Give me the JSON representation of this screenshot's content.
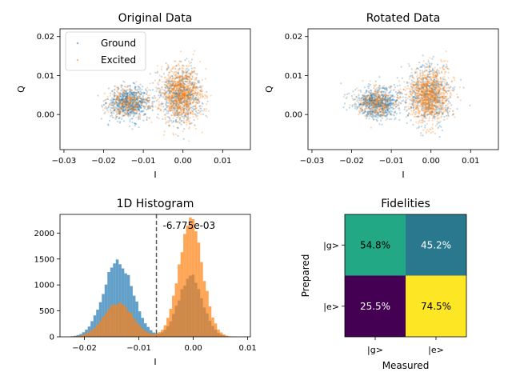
{
  "chart_data": [
    {
      "type": "scatter",
      "title": "Original Data",
      "xlabel": "I",
      "ylabel": "Q",
      "xlim": [
        -0.031,
        0.017
      ],
      "ylim": [
        -0.009,
        0.022
      ],
      "xticks": [
        -0.03,
        -0.02,
        -0.01,
        0.0,
        0.01
      ],
      "xtick_labels": [
        "−0.03",
        "−0.02",
        "−0.01",
        "0.00",
        "0.01"
      ],
      "yticks": [
        0.0,
        0.01,
        0.02
      ],
      "ytick_labels": [
        "0.00",
        "0.01",
        "0.02"
      ],
      "legend_position": "top-left",
      "series": [
        {
          "name": "Ground",
          "color": "#1f77b4",
          "clusters": [
            {
              "center": [
                -0.0135,
                0.003
              ],
              "spread": [
                0.0027,
                0.002
              ],
              "share": 0.55
            },
            {
              "center": [
                -0.0005,
                0.005
              ],
              "spread": [
                0.0026,
                0.0035
              ],
              "share": 0.45
            }
          ]
        },
        {
          "name": "Excited",
          "color": "#ff7f0e",
          "clusters": [
            {
              "center": [
                -0.0135,
                0.003
              ],
              "spread": [
                0.0027,
                0.002
              ],
              "share": 0.25
            },
            {
              "center": [
                -0.0005,
                0.005
              ],
              "spread": [
                0.0026,
                0.0035
              ],
              "share": 0.75
            }
          ]
        }
      ]
    },
    {
      "type": "scatter",
      "title": "Rotated Data",
      "xlabel": "I",
      "ylabel": "Q",
      "xlim": [
        -0.031,
        0.017
      ],
      "ylim": [
        -0.009,
        0.022
      ],
      "xticks": [
        -0.03,
        -0.02,
        -0.01,
        0.0,
        0.01
      ],
      "xtick_labels": [
        "−0.03",
        "−0.02",
        "−0.01",
        "0.00",
        "0.01"
      ],
      "yticks": [
        0.0,
        0.01,
        0.02
      ],
      "ytick_labels": [
        "0.00",
        "0.01",
        "0.02"
      ],
      "series": [
        {
          "name": "Ground",
          "color": "#1f77b4",
          "clusters": [
            {
              "center": [
                -0.0135,
                0.003
              ],
              "spread": [
                0.0027,
                0.002
              ],
              "share": 0.55
            },
            {
              "center": [
                -0.0005,
                0.005
              ],
              "spread": [
                0.0026,
                0.0035
              ],
              "share": 0.45
            }
          ]
        },
        {
          "name": "Excited",
          "color": "#ff7f0e",
          "clusters": [
            {
              "center": [
                -0.0135,
                0.003
              ],
              "spread": [
                0.0027,
                0.002
              ],
              "share": 0.25
            },
            {
              "center": [
                -0.0005,
                0.005
              ],
              "spread": [
                0.0026,
                0.0035
              ],
              "share": 0.75
            }
          ]
        }
      ]
    },
    {
      "type": "bar",
      "title": "1D Histogram",
      "xlabel": "I",
      "xlim": [
        -0.0245,
        0.0105
      ],
      "ylim": [
        0,
        2360
      ],
      "xticks": [
        -0.02,
        -0.01,
        0.0,
        0.01
      ],
      "xtick_labels": [
        "−0.02",
        "−0.01",
        "0.00",
        "0.01"
      ],
      "yticks": [
        0,
        500,
        1000,
        1500,
        2000
      ],
      "ytick_labels": [
        "0",
        "500",
        "1000",
        "1500",
        "2000"
      ],
      "threshold": -0.006775,
      "threshold_label": "-6.775e-03",
      "series": [
        {
          "name": "Ground",
          "color": "#1f77b4",
          "opacity": 0.7,
          "components": [
            {
              "mu": -0.0138,
              "sigma": 0.0027,
              "peak": 1450
            },
            {
              "mu": -0.0005,
              "sigma": 0.0022,
              "peak": 1160
            }
          ]
        },
        {
          "name": "Excited",
          "color": "#ff7f0e",
          "opacity": 0.7,
          "components": [
            {
              "mu": -0.0138,
              "sigma": 0.0027,
              "peak": 650
            },
            {
              "mu": -0.0005,
              "sigma": 0.0022,
              "peak": 2200
            }
          ]
        }
      ]
    },
    {
      "type": "heatmap",
      "title": "Fidelities",
      "xlabel": "Measured",
      "ylabel": "Prepared",
      "x_labels": [
        "|g>",
        "|e>"
      ],
      "y_labels": [
        "|g>",
        "|e>"
      ],
      "cells": [
        [
          {
            "text": "54.8%",
            "value": 0.548,
            "color": "#22a884",
            "text_color": "#000000"
          },
          {
            "text": "45.2%",
            "value": 0.452,
            "color": "#2a788e",
            "text_color": "#ffffff"
          }
        ],
        [
          {
            "text": "25.5%",
            "value": 0.255,
            "color": "#440154",
            "text_color": "#ffffff"
          },
          {
            "text": "74.5%",
            "value": 0.745,
            "color": "#fde725",
            "text_color": "#000000"
          }
        ]
      ]
    }
  ]
}
